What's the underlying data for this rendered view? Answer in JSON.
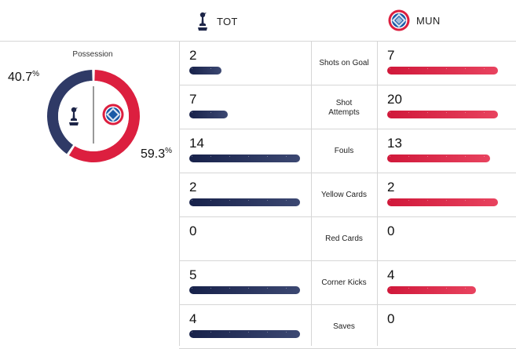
{
  "header": {
    "home_team": {
      "abbr": "TOT",
      "icon": "tottenham-crest-icon"
    },
    "away_team": {
      "abbr": "MUN",
      "icon": "bayern-munich-crest-icon"
    }
  },
  "possession": {
    "title": "Possession",
    "home_pct": 40.7,
    "away_pct": 59.3,
    "home_label": "40.7",
    "away_label": "59.3",
    "percent_symbol": "%"
  },
  "colors": {
    "home": "#2f3a66",
    "away": "#dc1f3f",
    "divider": "#d6d6d6"
  },
  "stats": [
    {
      "label": "Shots on Goal",
      "home": "2",
      "away": "7",
      "home_fill": 0.29,
      "away_fill": 1.0
    },
    {
      "label": "Shot Attempts",
      "home": "7",
      "away": "20",
      "home_fill": 0.35,
      "away_fill": 1.0
    },
    {
      "label": "Fouls",
      "home": "14",
      "away": "13",
      "home_fill": 1.0,
      "away_fill": 0.93
    },
    {
      "label": "Yellow Cards",
      "home": "2",
      "away": "2",
      "home_fill": 1.0,
      "away_fill": 1.0
    },
    {
      "label": "Red Cards",
      "home": "0",
      "away": "0",
      "home_fill": 0.0,
      "away_fill": 0.0
    },
    {
      "label": "Corner Kicks",
      "home": "5",
      "away": "4",
      "home_fill": 1.0,
      "away_fill": 0.8
    },
    {
      "label": "Saves",
      "home": "4",
      "away": "0",
      "home_fill": 1.0,
      "away_fill": 0.0
    }
  ]
}
